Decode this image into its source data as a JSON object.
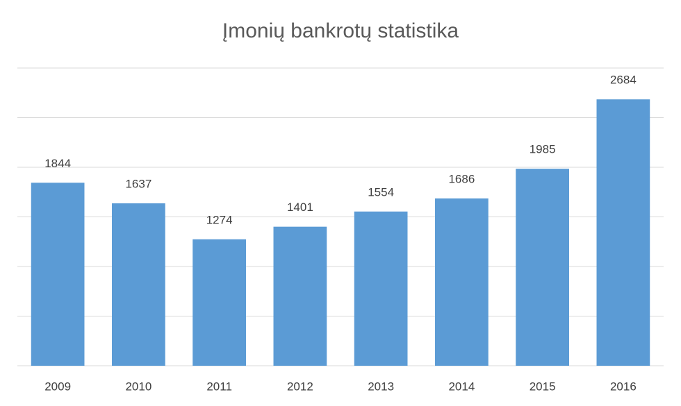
{
  "chart_data": {
    "type": "bar",
    "title": "Įmonių bankrotų statistika",
    "categories": [
      "2009",
      "2010",
      "2011",
      "2012",
      "2013",
      "2014",
      "2015",
      "2016"
    ],
    "values": [
      1844,
      1637,
      1274,
      1401,
      1554,
      1686,
      1985,
      2684
    ],
    "color": "#5b9bd5",
    "ylim": [
      0,
      3000
    ],
    "yticks": [
      0,
      500,
      1000,
      1500,
      2000,
      2500,
      3000
    ],
    "grid": true
  }
}
